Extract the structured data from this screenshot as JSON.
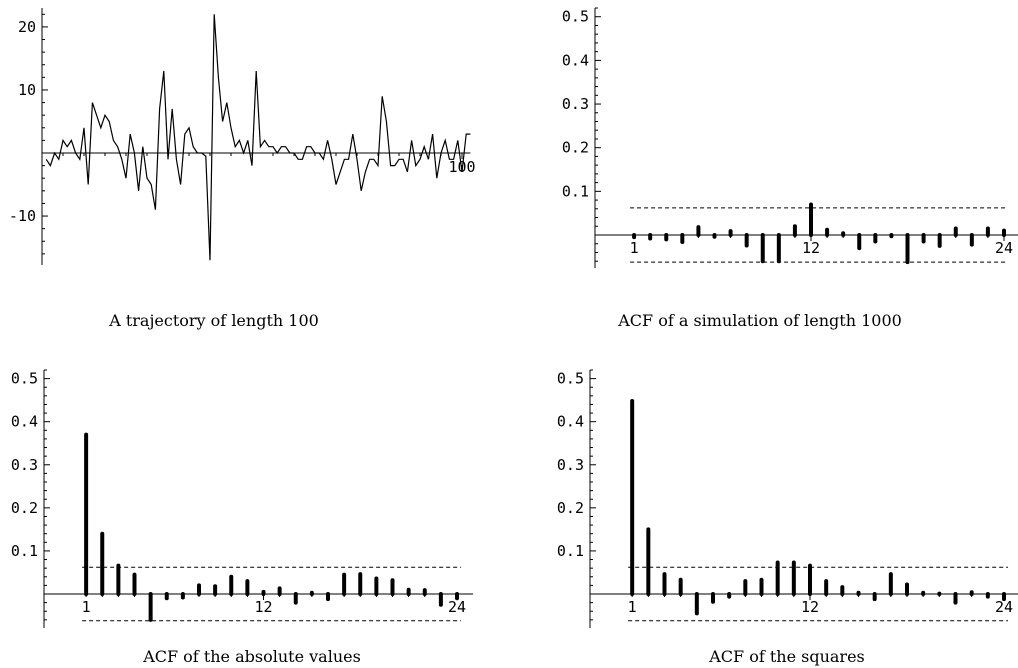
{
  "chart_data": [
    {
      "type": "line",
      "caption": "A trajectory of length 100",
      "xlim": [
        0,
        102
      ],
      "ylim": [
        -17.5,
        23
      ],
      "y_ticks": [
        {
          "value": 20,
          "label": "20"
        },
        {
          "value": 10,
          "label": "10"
        },
        {
          "value": -10,
          "label": "-10"
        }
      ],
      "x_ticks": [
        {
          "value": 100,
          "label": "100"
        }
      ],
      "series": [
        {
          "values": [
            -1,
            -2,
            0,
            -1,
            2,
            1,
            2,
            0,
            -1,
            4,
            -5,
            8,
            6,
            4,
            6,
            5,
            2,
            1,
            -1,
            -4,
            3,
            0,
            -6,
            1,
            -4,
            -5,
            -9,
            7,
            13,
            -1,
            7,
            -1,
            -5,
            3,
            4,
            1,
            0,
            0,
            -0.5,
            -17,
            22,
            12,
            5,
            8,
            4,
            1,
            2,
            0,
            2,
            -2,
            13,
            1,
            2,
            1,
            1,
            0,
            1,
            1,
            0,
            0,
            -1,
            -1,
            1,
            1,
            0,
            0,
            -1,
            2,
            -1,
            -5,
            -3,
            -1,
            -1,
            3,
            -1,
            -6,
            -3,
            -1,
            -1,
            -2,
            9,
            5,
            -2,
            -2,
            -1,
            -1,
            -3,
            2,
            -2,
            -1,
            1,
            -1,
            3,
            -4,
            0,
            2,
            -1,
            -1,
            2,
            -3,
            3,
            3
          ]
        }
      ]
    },
    {
      "type": "bar",
      "caption": "ACF of a simulation of length 1000",
      "xlim": [
        0,
        25
      ],
      "ylim": [
        -0.07,
        0.52
      ],
      "band": 0.062,
      "y_ticks": [
        {
          "value": 0.5,
          "label": "0.5"
        },
        {
          "value": 0.4,
          "label": "0.4"
        },
        {
          "value": 0.3,
          "label": "0.3"
        },
        {
          "value": 0.2,
          "label": "0.2"
        },
        {
          "value": 0.1,
          "label": "0.1"
        }
      ],
      "x_ticks": [
        {
          "value": 1,
          "label": "1"
        },
        {
          "value": 12,
          "label": "12"
        },
        {
          "value": 24,
          "label": "24"
        }
      ],
      "categories": [
        1,
        2,
        3,
        4,
        5,
        6,
        7,
        8,
        9,
        10,
        11,
        12,
        13,
        14,
        15,
        16,
        17,
        18,
        19,
        20,
        21,
        22,
        23,
        24
      ],
      "values": [
        -0.005,
        -0.008,
        -0.01,
        -0.016,
        0.018,
        -0.004,
        0.009,
        -0.024,
        -0.06,
        -0.06,
        0.02,
        0.07,
        0.012,
        0.004,
        -0.03,
        -0.015,
        -0.003,
        -0.062,
        -0.015,
        -0.025,
        0.015,
        -0.022,
        0.015,
        0.01
      ]
    },
    {
      "type": "bar",
      "caption": "ACF of the absolute values",
      "xlim": [
        0,
        25
      ],
      "ylim": [
        -0.07,
        0.52
      ],
      "band": 0.062,
      "y_ticks": [
        {
          "value": 0.5,
          "label": "0.5"
        },
        {
          "value": 0.4,
          "label": "0.4"
        },
        {
          "value": 0.3,
          "label": "0.3"
        },
        {
          "value": 0.2,
          "label": "0.2"
        },
        {
          "value": 0.1,
          "label": "0.1"
        }
      ],
      "x_ticks": [
        {
          "value": 1,
          "label": "1"
        },
        {
          "value": 12,
          "label": "12"
        },
        {
          "value": 24,
          "label": "24"
        }
      ],
      "categories": [
        1,
        2,
        3,
        4,
        5,
        6,
        7,
        8,
        9,
        10,
        11,
        12,
        13,
        14,
        15,
        16,
        17,
        18,
        19,
        20,
        21,
        22,
        23,
        24
      ],
      "values": [
        0.37,
        0.14,
        0.066,
        0.045,
        -0.06,
        -0.01,
        -0.008,
        0.02,
        0.018,
        0.04,
        0.03,
        0.005,
        0.013,
        -0.02,
        0.003,
        -0.012,
        0.045,
        0.046,
        0.036,
        0.032,
        0.01,
        0.009,
        -0.025,
        -0.01
      ]
    },
    {
      "type": "bar",
      "caption": "ACF of the squares",
      "xlim": [
        0,
        25
      ],
      "ylim": [
        -0.07,
        0.52
      ],
      "band": 0.062,
      "y_ticks": [
        {
          "value": 0.5,
          "label": "0.5"
        },
        {
          "value": 0.4,
          "label": "0.4"
        },
        {
          "value": 0.3,
          "label": "0.3"
        },
        {
          "value": 0.2,
          "label": "0.2"
        },
        {
          "value": 0.1,
          "label": "0.1"
        }
      ],
      "x_ticks": [
        {
          "value": 1,
          "label": "1"
        },
        {
          "value": 12,
          "label": "12"
        },
        {
          "value": 24,
          "label": "24"
        }
      ],
      "categories": [
        1,
        2,
        3,
        4,
        5,
        6,
        7,
        8,
        9,
        10,
        11,
        12,
        13,
        14,
        15,
        16,
        17,
        18,
        19,
        20,
        21,
        22,
        23,
        24
      ],
      "values": [
        0.448,
        0.15,
        0.046,
        0.033,
        -0.045,
        -0.018,
        -0.006,
        0.03,
        0.033,
        0.073,
        0.073,
        0.066,
        0.03,
        0.016,
        0.003,
        -0.012,
        0.046,
        0.022,
        0.003,
        0.001,
        -0.02,
        0.004,
        -0.006,
        -0.012
      ]
    }
  ]
}
